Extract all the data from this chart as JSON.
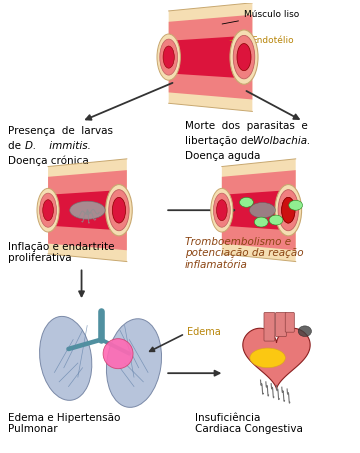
{
  "background_color": "#ffffff",
  "figsize": [
    3.6,
    4.53
  ],
  "dpi": 100,
  "colors": {
    "arrow": "#333333",
    "text_normal": "#000000",
    "text_trombo": "#8B4513",
    "endotelio_color": "#B8860B",
    "artery_outer": "#F5DEB3",
    "artery_outer_edge": "#C8A870",
    "artery_mid": "#F08080",
    "artery_mid_edge": "#C06060",
    "artery_inner": "#DC143C",
    "artery_inner_edge": "#8B0000",
    "lung_fill": "#B0BED8",
    "lung_edge": "#7080A0",
    "bronchi": "#5090A0",
    "edema_spot": "#FF69B4",
    "heart_fill": "#E87878",
    "heart_edge": "#8B2020",
    "worm_color": "#808080",
    "green_spot": "#90EE90",
    "green_spot_edge": "#228B22"
  },
  "text": {
    "musculo_liso": "Músculo liso",
    "endotelio": "Endotélio",
    "presenca_line1": "Presença  de  larvas",
    "presenca_line2": "de",
    "presenca_italic": "D.    immitis.",
    "presenca_line3": "Doença crónica",
    "morte_line1": "Morte  dos  parasitas  e",
    "morte_line2": "libertação de",
    "morte_italic": "Wolbachia.",
    "morte_line3": "Doença aguda",
    "inflamacao": "Inflação e endartrite\nproliferativa",
    "trombo": "Tromboembolismo e\npotenciação da reação\ninflamatória",
    "edema": "Edema",
    "edema_hiper": "Edema e Hipertensão\nPulmonar",
    "insuf": "Insuficiência\nCardiaca Congestiva"
  },
  "font_sizes": {
    "body": 7.5,
    "small": 7.0,
    "label": 6.5
  }
}
